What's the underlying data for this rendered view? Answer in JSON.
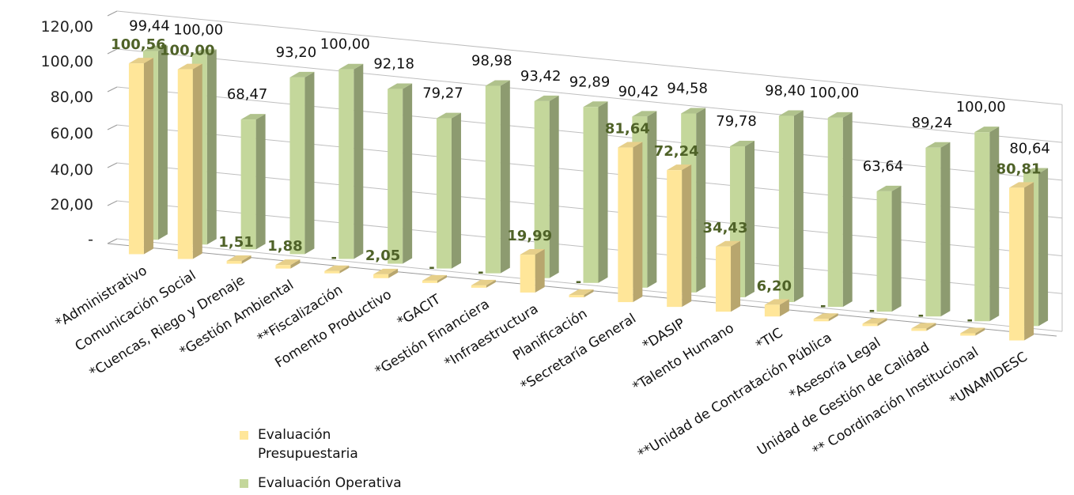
{
  "chart_data": {
    "type": "bar",
    "title": "",
    "xlabel": "",
    "ylabel": "",
    "ylim": [
      0,
      120
    ],
    "yticks": [
      "-",
      "20,00",
      "40,00",
      "60,00",
      "80,00",
      "100,00",
      "120,00"
    ],
    "grid": true,
    "legend_position": "bottom-left",
    "categories": [
      "*Administrativo",
      "Comunicación Social",
      "*Cuencas, Riego y Drenaje",
      "*Gestión Ambiental",
      "**Fiscalización",
      "Fomento Productivo",
      "*GACIT",
      "*Gestión Financiera",
      "*Infraestructura",
      "Planificación",
      "*Secretaría General",
      "*DASIP",
      "*Talento Humano",
      "*TIC",
      "**Unidad de Contratación Pública",
      "*Asesoría Legal",
      "Unidad de Gestión de Calidad",
      "** Coordinación Institucional",
      "*UNAMIDESC"
    ],
    "series": [
      {
        "name": "Evaluación Presupuestaria",
        "color": "#ffe699",
        "values": [
          100.56,
          100.0,
          1.51,
          1.88,
          0,
          2.05,
          0,
          0,
          19.99,
          0,
          81.64,
          72.24,
          34.43,
          6.2,
          0,
          0,
          0,
          0,
          80.81
        ],
        "labels": [
          "100,56",
          "100,00",
          "1,51",
          "1,88",
          "-",
          "2,05",
          "-",
          "-",
          "19,99",
          "-",
          "81,64",
          "72,24",
          "34,43",
          "6,20",
          "-",
          "-",
          "-",
          "-",
          "80,81"
        ]
      },
      {
        "name": "Evaluación Operativa",
        "color": "#c4d79b",
        "values": [
          99.44,
          100.0,
          68.47,
          93.2,
          100.0,
          92.18,
          79.27,
          98.98,
          93.42,
          92.89,
          90.42,
          94.58,
          79.78,
          98.4,
          100.0,
          63.64,
          89.24,
          100.0,
          80.64
        ],
        "labels": [
          "99,44",
          "100,00",
          "68,47",
          "93,20",
          "100,00",
          "92,18",
          "79,27",
          "98,98",
          "93,42",
          "92,89",
          "90,42",
          "94,58",
          "79,78",
          "98,40",
          "100,00",
          "63,64",
          "89,24",
          "100,00",
          "80,64"
        ]
      }
    ]
  }
}
